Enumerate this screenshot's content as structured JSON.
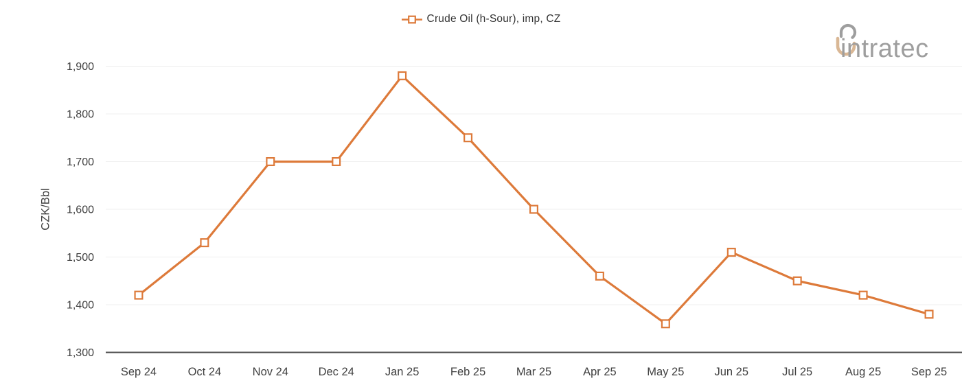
{
  "logo": {
    "text": "intratec"
  },
  "colors": {
    "series": "#DD7A3A",
    "marker_fill": "#ffffff",
    "grid": "#efefef",
    "axis_line": "#4f4f4f",
    "tick_label": "#404040",
    "legend_text": "#333333",
    "logo_gray": "#9e9e9e",
    "logo_tan": "#d9b795",
    "background": "#ffffff"
  },
  "chart_data": {
    "type": "line",
    "title": "",
    "categories": [
      "Sep 24",
      "Oct 24",
      "Nov 24",
      "Dec 24",
      "Jan 25",
      "Feb 25",
      "Mar 25",
      "Apr 25",
      "May 25",
      "Jun 25",
      "Jul 25",
      "Aug 25",
      "Sep 25"
    ],
    "series": [
      {
        "name": "Crude Oil (h-Sour), imp, CZ",
        "marker": "square",
        "values": [
          1420,
          1530,
          1700,
          1700,
          1880,
          1750,
          1600,
          1460,
          1360,
          1510,
          1450,
          1420,
          1380
        ]
      }
    ],
    "xlabel": "",
    "ylabel": "CZK/Bbl",
    "ylim": [
      1300,
      1900
    ],
    "yticks": [
      1300,
      1400,
      1500,
      1600,
      1700,
      1800,
      1900
    ],
    "ytick_format": "thousands-comma",
    "grid": true,
    "legend_position": "top-center"
  }
}
